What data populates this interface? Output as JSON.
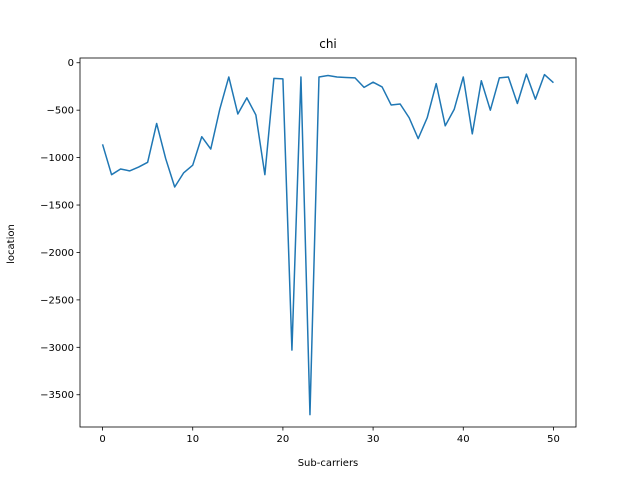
{
  "chart_data": {
    "type": "line",
    "title": "chi",
    "xlabel": "Sub-carriers",
    "ylabel": "location",
    "xlim": [
      -2.5,
      52.5
    ],
    "ylim": [
      -3840,
      50
    ],
    "xticks": [
      0,
      10,
      20,
      30,
      40,
      50
    ],
    "yticks": [
      0,
      -500,
      -1000,
      -1500,
      -2000,
      -2500,
      -3000,
      -3500
    ],
    "ytick_labels": [
      "0",
      "−500",
      "−1000",
      "−1500",
      "−2000",
      "−2500",
      "−3000",
      "−3500"
    ],
    "grid": false,
    "series": [
      {
        "color": "#1f77b4",
        "x": [
          0,
          1,
          2,
          3,
          4,
          5,
          6,
          7,
          8,
          9,
          10,
          11,
          12,
          13,
          14,
          15,
          16,
          17,
          18,
          19,
          20,
          21,
          22,
          23,
          24,
          25,
          26,
          27,
          28,
          29,
          30,
          31,
          32,
          33,
          34,
          35,
          36,
          37,
          38,
          39,
          40,
          41,
          42,
          43,
          44,
          45,
          46,
          47,
          48,
          49,
          50
        ],
        "values": [
          -860,
          -1180,
          -1120,
          -1140,
          -1100,
          -1050,
          -640,
          -1010,
          -1310,
          -1160,
          -1080,
          -780,
          -910,
          -490,
          -150,
          -540,
          -370,
          -550,
          -1180,
          -165,
          -170,
          -3030,
          -150,
          -3710,
          -150,
          -135,
          -150,
          -155,
          -160,
          -260,
          -205,
          -255,
          -445,
          -435,
          -580,
          -800,
          -580,
          -220,
          -665,
          -490,
          -150,
          -750,
          -190,
          -500,
          -160,
          -150,
          -430,
          -120,
          -385,
          -125,
          -210
        ]
      }
    ]
  }
}
